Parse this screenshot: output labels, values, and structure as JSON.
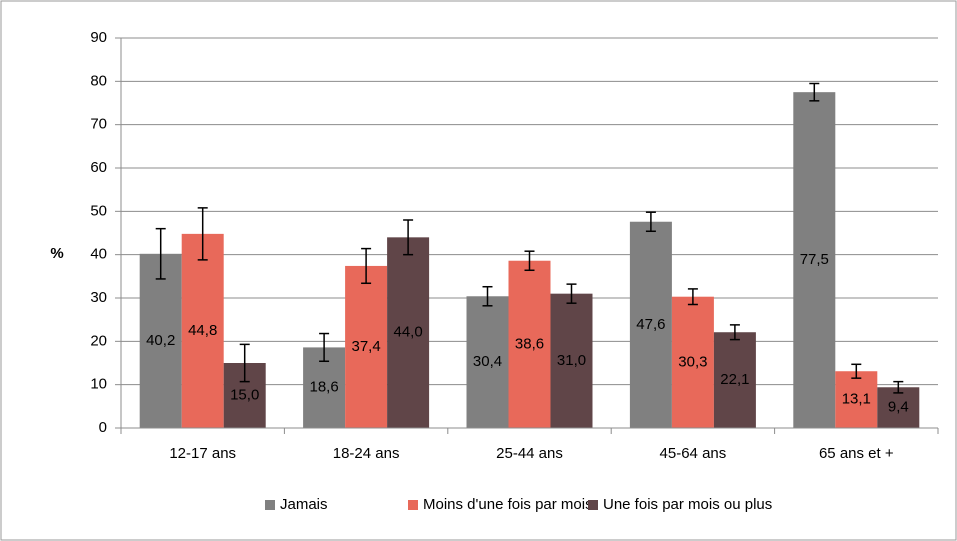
{
  "chart_data": {
    "type": "bar",
    "y_label": "%",
    "categories": [
      "12-17 ans",
      "18-24 ans",
      "25-44 ans",
      "45-64 ans",
      "65 ans et +"
    ],
    "series": [
      {
        "name": "Jamais",
        "color": "#808080",
        "values": [
          40.2,
          18.6,
          30.4,
          47.6,
          77.5
        ],
        "value_labels": [
          "40,2",
          "18,6",
          "30,4",
          "47,6",
          "77,5"
        ],
        "errors": [
          5.8,
          3.2,
          2.2,
          2.2,
          2.0
        ]
      },
      {
        "name": "Moins d'une fois par mois",
        "color": "#e8695a",
        "values": [
          44.8,
          37.4,
          38.6,
          30.3,
          13.1
        ],
        "value_labels": [
          "44,8",
          "37,4",
          "38,6",
          "30,3",
          "13,1"
        ],
        "errors": [
          6.0,
          4.0,
          2.2,
          1.8,
          1.6
        ]
      },
      {
        "name": "Une fois par mois ou plus",
        "color": "#604548",
        "values": [
          15.0,
          44.0,
          31.0,
          22.1,
          9.4
        ],
        "value_labels": [
          "15,0",
          "44,0",
          "31,0",
          "22,1",
          "9,4"
        ],
        "errors": [
          4.3,
          4.0,
          2.2,
          1.7,
          1.3
        ]
      }
    ],
    "ylim": [
      0,
      90
    ],
    "yticks": [
      0,
      10,
      20,
      30,
      40,
      50,
      60,
      70,
      80,
      90
    ],
    "grid": true,
    "legend": "bottom"
  }
}
